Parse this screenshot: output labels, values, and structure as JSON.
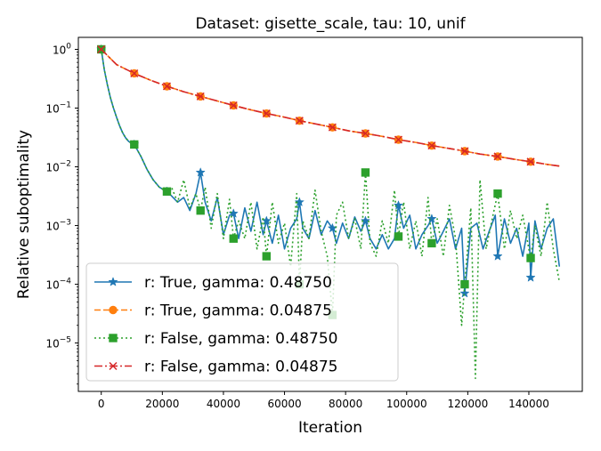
{
  "chart_data": {
    "type": "line",
    "title": "Dataset: gisette_scale, tau: 10, unif",
    "xlabel": "Iteration",
    "ylabel": "Relative suboptimality",
    "xscale": "linear",
    "yscale": "log",
    "xlim": [
      -7500,
      157500
    ],
    "ylim": [
      1.5e-06,
      1.6
    ],
    "xticks": [
      0,
      20000,
      40000,
      60000,
      80000,
      100000,
      120000,
      140000
    ],
    "xtick_labels": [
      "0",
      "20000",
      "40000",
      "60000",
      "80000",
      "100000",
      "120000",
      "140000"
    ],
    "ytick_exponents": [
      0,
      -1,
      -2,
      -3,
      -4,
      -5
    ],
    "ytick_base": "10",
    "legend_position": "lower-left",
    "grid": false,
    "series": [
      {
        "name": "r: True, gamma: 0.48750",
        "color": "#1f77b4",
        "linestyle": "solid",
        "marker": "star",
        "x": [
          0,
          1000,
          2000,
          3000,
          4000,
          5000,
          6000,
          7000,
          8000,
          9000,
          10800,
          13000,
          15000,
          17000,
          19000,
          21500,
          23000,
          25000,
          27000,
          29000,
          31000,
          32500,
          34000,
          36000,
          38000,
          40000,
          42000,
          43300,
          45000,
          47000,
          49000,
          51000,
          53000,
          54100,
          56000,
          58000,
          60000,
          62000,
          64000,
          64900,
          66000,
          68000,
          70000,
          72000,
          74000,
          75700,
          77000,
          79000,
          81000,
          83000,
          85000,
          86500,
          88000,
          90000,
          92000,
          94000,
          96000,
          97300,
          99000,
          101000,
          103000,
          105000,
          107000,
          108200,
          110000,
          112000,
          114000,
          116000,
          118000,
          119000,
          121000,
          123000,
          125000,
          127000,
          129000,
          129800,
          132000,
          134000,
          136000,
          138000,
          140000,
          140600,
          142000,
          144000,
          146000,
          148000,
          150000
        ],
        "y": [
          1,
          0.45,
          0.25,
          0.15,
          0.1,
          0.07,
          0.05,
          0.038,
          0.031,
          0.027,
          0.024,
          0.015,
          0.009,
          0.006,
          0.0045,
          0.0038,
          0.0032,
          0.0025,
          0.003,
          0.0018,
          0.0035,
          0.008,
          0.0025,
          0.0012,
          0.003,
          0.0007,
          0.0015,
          0.0016,
          0.0006,
          0.002,
          0.0008,
          0.0025,
          0.0007,
          0.0012,
          0.0005,
          0.0015,
          0.0004,
          0.0009,
          0.0013,
          0.0025,
          0.0009,
          0.0006,
          0.0018,
          0.0007,
          0.0012,
          0.0009,
          0.0005,
          0.0011,
          0.0006,
          0.0014,
          0.0008,
          0.0012,
          0.0006,
          0.0004,
          0.0007,
          0.0004,
          0.0006,
          0.0022,
          0.0009,
          0.0015,
          0.0004,
          0.0007,
          0.001,
          0.0013,
          0.0005,
          0.0008,
          0.0013,
          0.0004,
          0.0009,
          7e-05,
          0.0009,
          0.0011,
          0.0004,
          0.0008,
          0.0015,
          0.0003,
          0.0013,
          0.0005,
          0.0009,
          0.0003,
          0.0011,
          0.00013,
          0.0012,
          0.0004,
          0.0009,
          0.0013,
          0.0002
        ],
        "marker_x": [
          0,
          10800,
          21500,
          32500,
          43300,
          54100,
          64900,
          75700,
          86500,
          97300,
          108200,
          119000,
          129800,
          140600
        ],
        "marker_y": [
          1,
          0.024,
          0.0038,
          0.008,
          0.0016,
          0.0012,
          0.0025,
          0.0009,
          0.0012,
          0.0022,
          0.0013,
          7e-05,
          0.0003,
          0.00013
        ]
      },
      {
        "name": "r: True, gamma: 0.04875",
        "color": "#ff7f0e",
        "linestyle": "dashed",
        "marker": "circle",
        "x": [
          0,
          5000,
          10800,
          16000,
          21500,
          27000,
          32500,
          38000,
          43300,
          48000,
          54100,
          60000,
          64900,
          70000,
          75700,
          81000,
          86500,
          92000,
          97300,
          103000,
          108200,
          114000,
          119000,
          124000,
          129800,
          135000,
          140600,
          146000,
          150000
        ],
        "y": [
          1,
          0.55,
          0.39,
          0.3,
          0.235,
          0.19,
          0.158,
          0.132,
          0.111,
          0.096,
          0.081,
          0.07,
          0.061,
          0.054,
          0.047,
          0.041,
          0.037,
          0.033,
          0.029,
          0.026,
          0.023,
          0.0205,
          0.0185,
          0.0165,
          0.015,
          0.0135,
          0.0122,
          0.011,
          0.0103
        ],
        "marker_x": [
          0,
          10800,
          21500,
          32500,
          43300,
          54100,
          64900,
          75700,
          86500,
          97300,
          108200,
          119000,
          129800,
          140600
        ],
        "marker_y": [
          1,
          0.39,
          0.235,
          0.158,
          0.111,
          0.081,
          0.061,
          0.047,
          0.037,
          0.029,
          0.023,
          0.0185,
          0.015,
          0.0122
        ]
      },
      {
        "name": "r: False, gamma: 0.48750",
        "color": "#2ca02c",
        "linestyle": "dotted",
        "marker": "square",
        "x": [
          0,
          1000,
          2000,
          3000,
          4000,
          5000,
          6000,
          7000,
          8000,
          9000,
          10800,
          13000,
          15000,
          17000,
          19000,
          21500,
          23000,
          25000,
          27000,
          29000,
          31000,
          32500,
          34000,
          36000,
          38000,
          40000,
          42000,
          43300,
          45000,
          47000,
          49000,
          51000,
          53000,
          54100,
          56000,
          58000,
          60000,
          62000,
          64000,
          64900,
          66000,
          68000,
          70000,
          72000,
          74000,
          75700,
          77000,
          79000,
          81000,
          83000,
          85000,
          86500,
          88000,
          90000,
          92000,
          94000,
          96000,
          97300,
          99000,
          101000,
          103000,
          105000,
          107000,
          108200,
          110000,
          112000,
          114000,
          116000,
          118000,
          119000,
          121000,
          122500,
          124000,
          126000,
          128000,
          129800,
          132000,
          134000,
          136000,
          138000,
          140000,
          140600,
          142000,
          144000,
          146000,
          148000,
          150000
        ],
        "y": [
          1,
          0.45,
          0.25,
          0.15,
          0.1,
          0.07,
          0.05,
          0.038,
          0.031,
          0.027,
          0.024,
          0.015,
          0.009,
          0.006,
          0.0045,
          0.0038,
          0.0045,
          0.0025,
          0.006,
          0.002,
          0.0035,
          0.0018,
          0.0045,
          0.0009,
          0.0035,
          0.0006,
          0.0028,
          0.0006,
          0.0012,
          0.0006,
          0.0025,
          0.0004,
          0.0014,
          0.0003,
          0.0025,
          0.0005,
          0.0011,
          0.0002,
          0.0035,
          0.0001,
          0.0012,
          0.0006,
          0.004,
          0.0008,
          0.0003,
          3e-05,
          0.0015,
          0.0025,
          0.0006,
          0.0013,
          0.0004,
          0.008,
          0.0005,
          0.0003,
          0.0012,
          0.0005,
          0.004,
          0.00065,
          0.0025,
          0.0004,
          0.0012,
          0.0003,
          0.003,
          0.0005,
          0.0013,
          0.0003,
          0.0022,
          0.0006,
          2e-05,
          0.0001,
          0.002,
          2.5e-06,
          0.006,
          0.0004,
          0.0013,
          0.0035,
          0.0004,
          0.0018,
          0.0006,
          0.0015,
          0.0004,
          0.00028,
          0.001,
          0.0003,
          0.0025,
          0.0004,
          0.00011
        ],
        "marker_x": [
          0,
          10800,
          21500,
          32500,
          43300,
          54100,
          64900,
          75700,
          86500,
          97300,
          108200,
          119000,
          129800,
          140600
        ],
        "marker_y": [
          1,
          0.024,
          0.0038,
          0.0018,
          0.0006,
          0.0003,
          0.0001,
          3e-05,
          0.008,
          0.00065,
          0.0005,
          0.0001,
          0.0035,
          0.00028
        ]
      },
      {
        "name": "r: False, gamma: 0.04875",
        "color": "#d62728",
        "linestyle": "dashdot",
        "marker": "x",
        "x": [
          0,
          5000,
          10800,
          16000,
          21500,
          27000,
          32500,
          38000,
          43300,
          48000,
          54100,
          60000,
          64900,
          70000,
          75700,
          81000,
          86500,
          92000,
          97300,
          103000,
          108200,
          114000,
          119000,
          124000,
          129800,
          135000,
          140600,
          146000,
          150000
        ],
        "y": [
          1,
          0.55,
          0.39,
          0.3,
          0.235,
          0.19,
          0.158,
          0.132,
          0.111,
          0.096,
          0.081,
          0.07,
          0.061,
          0.054,
          0.047,
          0.041,
          0.037,
          0.033,
          0.029,
          0.026,
          0.023,
          0.0205,
          0.0185,
          0.0165,
          0.015,
          0.0135,
          0.0122,
          0.011,
          0.0103
        ],
        "marker_x": [
          0,
          10800,
          21500,
          32500,
          43300,
          54100,
          64900,
          75700,
          86500,
          97300,
          108200,
          119000,
          129800,
          140600
        ],
        "marker_y": [
          1,
          0.39,
          0.235,
          0.158,
          0.111,
          0.081,
          0.061,
          0.047,
          0.037,
          0.029,
          0.023,
          0.0185,
          0.015,
          0.0122
        ]
      }
    ]
  }
}
